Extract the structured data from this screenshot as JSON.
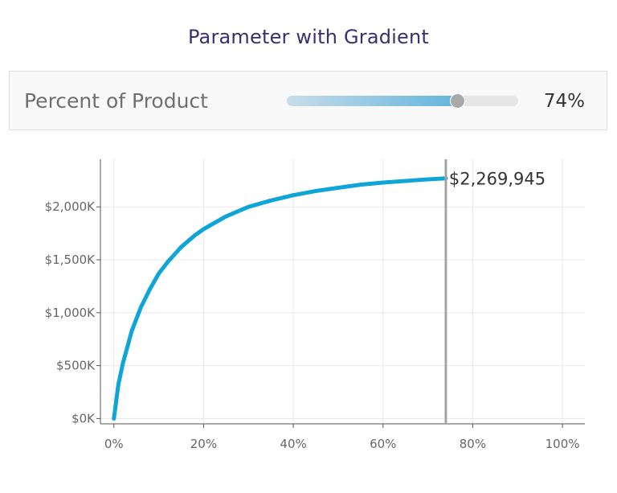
{
  "title": "Parameter with Gradient",
  "parameter": {
    "label": "Percent of Product",
    "value": 0.74,
    "value_label": "74%",
    "colors": {
      "track": "#e6e6e6",
      "fill_start": "#c9dce9",
      "fill_end": "#62b5dd",
      "thumb": "#a8a8a8"
    }
  },
  "chart_data": {
    "type": "line",
    "x": [
      0,
      1,
      2,
      4,
      6,
      8,
      10,
      12,
      15,
      18,
      20,
      25,
      30,
      35,
      40,
      45,
      50,
      55,
      60,
      65,
      70,
      74
    ],
    "y": [
      0,
      320000,
      520000,
      830000,
      1050000,
      1220000,
      1370000,
      1480000,
      1620000,
      1730000,
      1790000,
      1910000,
      2000000,
      2060000,
      2110000,
      2150000,
      2180000,
      2210000,
      2230000,
      2245000,
      2260000,
      2269945
    ],
    "xlim": [
      -3,
      105
    ],
    "ylim": [
      -50000,
      2450000
    ],
    "xticks": [
      0,
      20,
      40,
      60,
      80,
      100
    ],
    "xtick_labels": [
      "0%",
      "20%",
      "40%",
      "60%",
      "80%",
      "100%"
    ],
    "yticks": [
      0,
      500000,
      1000000,
      1500000,
      2000000
    ],
    "ytick_labels": [
      "$0K",
      "$500K",
      "$1,000K",
      "$1,500K",
      "$2,000K"
    ],
    "reference_line_x": 74,
    "end_label": "$2,269,945",
    "grid": true,
    "line_color": "#0fa5d8",
    "reference_line_color": "#a3a3a3"
  }
}
